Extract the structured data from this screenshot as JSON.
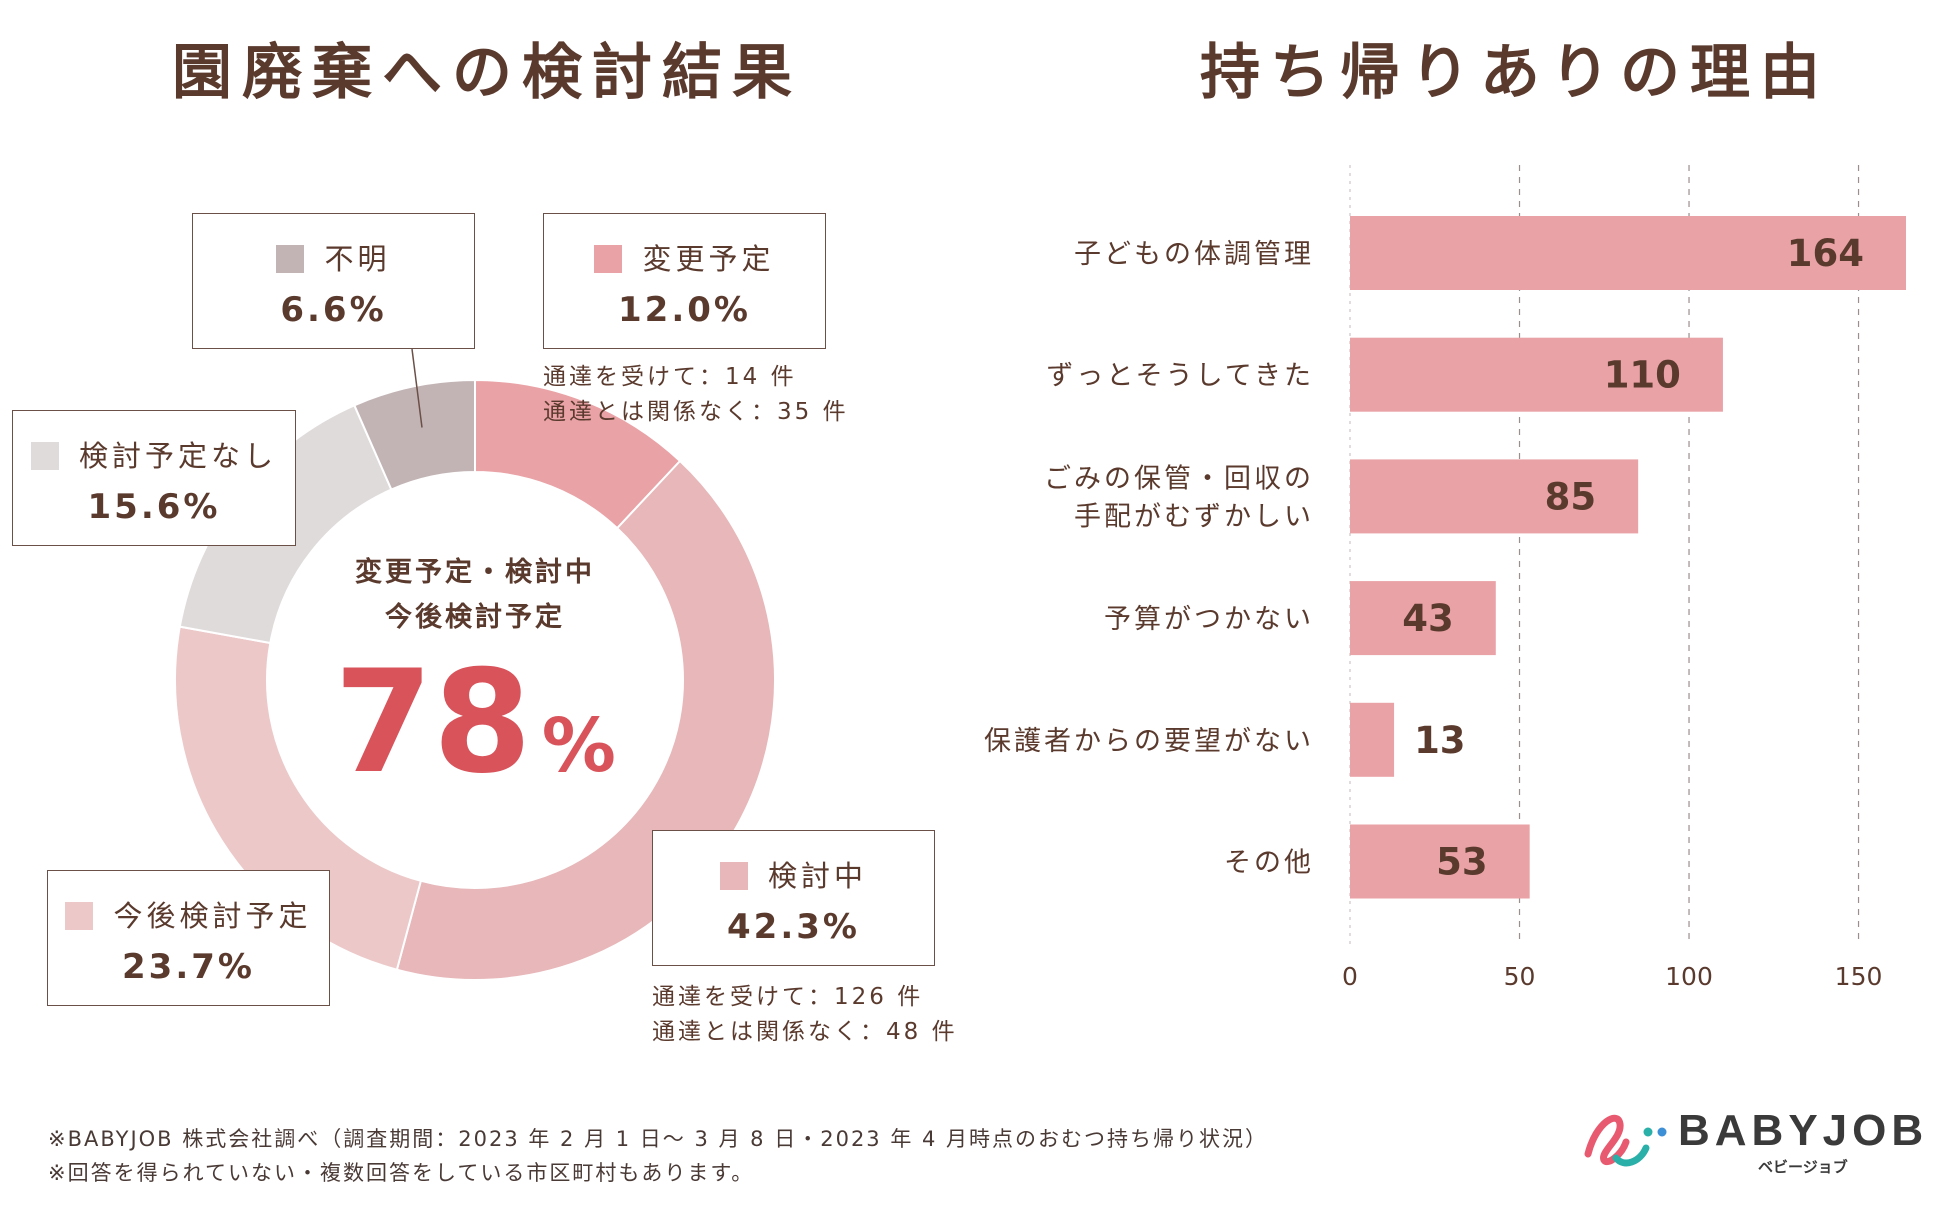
{
  "titles": {
    "left": "園廃棄への検討結果",
    "right": "持ち帰りありの理由"
  },
  "chart_data": [
    {
      "type": "pie",
      "title": "園廃棄への検討結果",
      "center": {
        "line1": "変更予定・検討中",
        "line2": "今後検討予定",
        "value": "78",
        "unit": "%"
      },
      "slices": [
        {
          "name": "変更予定",
          "value": 12.0,
          "label": "12.0%",
          "color": "#e9a2a6"
        },
        {
          "name": "検討中",
          "value": 42.3,
          "label": "42.3%",
          "color": "#e7b7b9"
        },
        {
          "name": "今後検討予定",
          "value": 23.7,
          "label": "23.7%",
          "color": "#ecc8c9"
        },
        {
          "name": "検討予定なし",
          "value": 15.6,
          "label": "15.6%",
          "color": "#e0dbdb"
        },
        {
          "name": "不明",
          "value": 6.6,
          "label": "6.6%",
          "color": "#c2b4b5"
        }
      ],
      "notes": {
        "henkou": [
          "通達を受けて：14 件",
          "通達とは関係なく：35 件"
        ],
        "kentou": [
          "通達を受けて：126 件",
          "通達とは関係なく：48 件"
        ]
      }
    },
    {
      "type": "bar",
      "orientation": "horizontal",
      "title": "持ち帰りありの理由",
      "categories": [
        "子どもの体調管理",
        "ずっとそうしてきた",
        "ごみの保管・回収の\n手配がむずかしい",
        "予算がつかない",
        "保護者からの要望がない",
        "その他"
      ],
      "values": [
        164,
        110,
        85,
        43,
        13,
        53
      ],
      "value_labels": [
        "164",
        "110",
        "85",
        "43",
        "13",
        "53"
      ],
      "xlim": [
        0,
        164
      ],
      "xticks": [
        "0",
        "50",
        "100",
        "150"
      ],
      "bar_color": "#e9a2a6",
      "grid": "dashed vertical"
    }
  ],
  "footer": {
    "line1": "※BABYJOB 株式会社調べ（調査期間：2023 年 2 月 1 日～ 3 月 8 日・2023 年 4 月時点のおむつ持ち帰り状況）",
    "line2": "※回答を得られていない・複数回答をしている市区町村もあります。"
  },
  "logo": {
    "name": "BABYJOB",
    "kana": "ベビージョブ",
    "icon": "babyjob-logo-icon"
  }
}
